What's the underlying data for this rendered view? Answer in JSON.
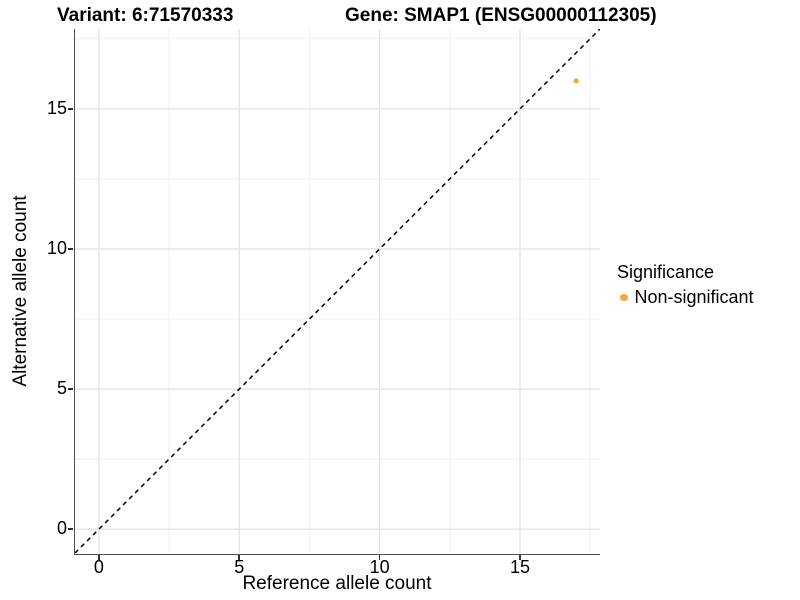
{
  "chart_data": {
    "type": "scatter",
    "title_variant": "Variant: 6:71570333",
    "title_gene": "Gene: SMAP1 (ENSG00000112305)",
    "xlabel": "Reference allele count",
    "ylabel": "Alternative allele count",
    "xlim": [
      -0.85,
      17.85
    ],
    "ylim": [
      -0.85,
      17.85
    ],
    "x_ticks": [
      0,
      5,
      10,
      15
    ],
    "y_ticks": [
      0,
      5,
      10,
      15
    ],
    "x_minor_ticks": [
      2.5,
      7.5,
      12.5,
      17.5
    ],
    "y_minor_ticks": [
      2.5,
      7.5,
      12.5,
      17.5
    ],
    "grid": true,
    "reference_line": {
      "type": "abline",
      "slope": 1,
      "intercept": 0,
      "style": "dashed",
      "color": "#000000"
    },
    "series": [
      {
        "name": "Non-significant",
        "color": "#F9A242",
        "points": [
          {
            "x": 17,
            "y": 16
          }
        ]
      }
    ],
    "legend": {
      "title": "Significance",
      "position": "right",
      "entries": [
        {
          "label": "Non-significant",
          "color": "#F9A242"
        }
      ]
    },
    "colors": {
      "background": "#FFFFFF",
      "grid_major": "#E4E4E4",
      "grid_minor": "#F0F0F0",
      "axis_line": "#4D4D4D",
      "tick_mark": "#333333",
      "text": "#000000",
      "point": "#F9A242"
    }
  }
}
